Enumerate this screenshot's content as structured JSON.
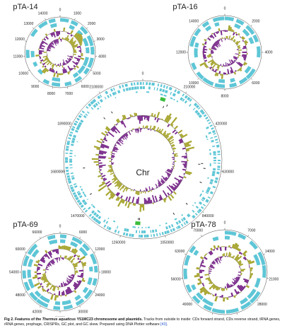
{
  "maps": [
    {
      "title": "pTA-14",
      "ticks": [
        0,
        1000,
        2000,
        3000,
        4000,
        5000,
        6000,
        7000,
        8000,
        9000,
        10000,
        11000,
        12000,
        13000,
        14000
      ]
    },
    {
      "title": "pTA-16",
      "ticks": [
        0,
        2000,
        4000,
        6000,
        8000,
        10000,
        12000,
        14000
      ]
    },
    {
      "title": "Chr",
      "ticks": [
        0,
        210000,
        420000,
        630000,
        840000,
        1050000,
        1260000,
        1470000,
        1680000,
        1890000,
        2100000
      ]
    },
    {
      "title": "pTA-69",
      "ticks": [
        0,
        6000,
        12000,
        18000,
        24000,
        30000,
        36000,
        42000,
        48000,
        54000,
        60000,
        66000
      ]
    },
    {
      "title": "pTA-78",
      "ticks": [
        0,
        7000,
        14000,
        21000,
        28000,
        35000,
        42000,
        49000,
        56000,
        63000,
        70000
      ]
    }
  ],
  "caption": {
    "bold1": "Fig 2. Features of the",
    "species": "Thermus aquaticus",
    "bold2": "Y51MC23 chromosome and plasmids.",
    "text": "Tracks from outside to inside: CDs forward strand, CDs reverse strand, tRNA genes, rRNA genes, prophage, CRISPRs, GC plot, and GC skew. Prepared using DNA Plotter software",
    "ref": "[43]",
    "end": "."
  }
}
